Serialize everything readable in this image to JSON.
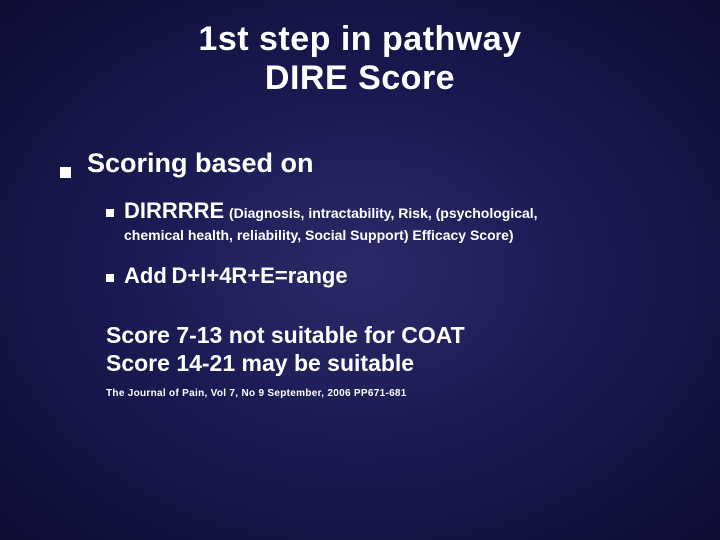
{
  "background_gradient": {
    "inner": "#2a2a6a",
    "mid": "#191950",
    "outer": "#0d0d35"
  },
  "text_color": "#ffffff",
  "title": {
    "line1": "1st step in pathway",
    "line2": "DIRE Score",
    "fontsize": 34
  },
  "heading": {
    "text": "Scoring based on",
    "fontsize": 27
  },
  "item1": {
    "acronym": "DIRRRRE",
    "expansion_part1": "(Diagnosis, intractability, Risk, (psychological,",
    "expansion_part2": "chemical health, reliability, Social Support) Efficacy Score)"
  },
  "item2": {
    "label": "Add",
    "formula": "D+I+4R+E=range"
  },
  "score": {
    "line1": "Score 7-13 not suitable for COAT",
    "line2": "Score 14-21 may be suitable"
  },
  "citation": "The Journal of Pain, Vol 7, No 9 September, 2006 PP671-681"
}
